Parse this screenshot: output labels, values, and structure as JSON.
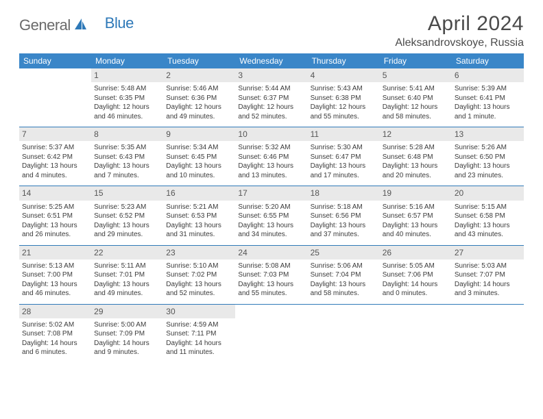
{
  "brand": {
    "part1": "General",
    "part2": "Blue"
  },
  "title": "April 2024",
  "location": "Aleksandrovskoye, Russia",
  "colors": {
    "header_bg": "#3a86c8",
    "header_text": "#ffffff",
    "daynum_bg": "#e9e9e9",
    "border": "#2e79b8",
    "brand_gray": "#6a6a6a",
    "brand_blue": "#2e79b8"
  },
  "day_names": [
    "Sunday",
    "Monday",
    "Tuesday",
    "Wednesday",
    "Thursday",
    "Friday",
    "Saturday"
  ],
  "weeks": [
    [
      {
        "n": "",
        "sr": "",
        "ss": "",
        "dl": ""
      },
      {
        "n": "1",
        "sr": "Sunrise: 5:48 AM",
        "ss": "Sunset: 6:35 PM",
        "dl": "Daylight: 12 hours and 46 minutes."
      },
      {
        "n": "2",
        "sr": "Sunrise: 5:46 AM",
        "ss": "Sunset: 6:36 PM",
        "dl": "Daylight: 12 hours and 49 minutes."
      },
      {
        "n": "3",
        "sr": "Sunrise: 5:44 AM",
        "ss": "Sunset: 6:37 PM",
        "dl": "Daylight: 12 hours and 52 minutes."
      },
      {
        "n": "4",
        "sr": "Sunrise: 5:43 AM",
        "ss": "Sunset: 6:38 PM",
        "dl": "Daylight: 12 hours and 55 minutes."
      },
      {
        "n": "5",
        "sr": "Sunrise: 5:41 AM",
        "ss": "Sunset: 6:40 PM",
        "dl": "Daylight: 12 hours and 58 minutes."
      },
      {
        "n": "6",
        "sr": "Sunrise: 5:39 AM",
        "ss": "Sunset: 6:41 PM",
        "dl": "Daylight: 13 hours and 1 minute."
      }
    ],
    [
      {
        "n": "7",
        "sr": "Sunrise: 5:37 AM",
        "ss": "Sunset: 6:42 PM",
        "dl": "Daylight: 13 hours and 4 minutes."
      },
      {
        "n": "8",
        "sr": "Sunrise: 5:35 AM",
        "ss": "Sunset: 6:43 PM",
        "dl": "Daylight: 13 hours and 7 minutes."
      },
      {
        "n": "9",
        "sr": "Sunrise: 5:34 AM",
        "ss": "Sunset: 6:45 PM",
        "dl": "Daylight: 13 hours and 10 minutes."
      },
      {
        "n": "10",
        "sr": "Sunrise: 5:32 AM",
        "ss": "Sunset: 6:46 PM",
        "dl": "Daylight: 13 hours and 13 minutes."
      },
      {
        "n": "11",
        "sr": "Sunrise: 5:30 AM",
        "ss": "Sunset: 6:47 PM",
        "dl": "Daylight: 13 hours and 17 minutes."
      },
      {
        "n": "12",
        "sr": "Sunrise: 5:28 AM",
        "ss": "Sunset: 6:48 PM",
        "dl": "Daylight: 13 hours and 20 minutes."
      },
      {
        "n": "13",
        "sr": "Sunrise: 5:26 AM",
        "ss": "Sunset: 6:50 PM",
        "dl": "Daylight: 13 hours and 23 minutes."
      }
    ],
    [
      {
        "n": "14",
        "sr": "Sunrise: 5:25 AM",
        "ss": "Sunset: 6:51 PM",
        "dl": "Daylight: 13 hours and 26 minutes."
      },
      {
        "n": "15",
        "sr": "Sunrise: 5:23 AM",
        "ss": "Sunset: 6:52 PM",
        "dl": "Daylight: 13 hours and 29 minutes."
      },
      {
        "n": "16",
        "sr": "Sunrise: 5:21 AM",
        "ss": "Sunset: 6:53 PM",
        "dl": "Daylight: 13 hours and 31 minutes."
      },
      {
        "n": "17",
        "sr": "Sunrise: 5:20 AM",
        "ss": "Sunset: 6:55 PM",
        "dl": "Daylight: 13 hours and 34 minutes."
      },
      {
        "n": "18",
        "sr": "Sunrise: 5:18 AM",
        "ss": "Sunset: 6:56 PM",
        "dl": "Daylight: 13 hours and 37 minutes."
      },
      {
        "n": "19",
        "sr": "Sunrise: 5:16 AM",
        "ss": "Sunset: 6:57 PM",
        "dl": "Daylight: 13 hours and 40 minutes."
      },
      {
        "n": "20",
        "sr": "Sunrise: 5:15 AM",
        "ss": "Sunset: 6:58 PM",
        "dl": "Daylight: 13 hours and 43 minutes."
      }
    ],
    [
      {
        "n": "21",
        "sr": "Sunrise: 5:13 AM",
        "ss": "Sunset: 7:00 PM",
        "dl": "Daylight: 13 hours and 46 minutes."
      },
      {
        "n": "22",
        "sr": "Sunrise: 5:11 AM",
        "ss": "Sunset: 7:01 PM",
        "dl": "Daylight: 13 hours and 49 minutes."
      },
      {
        "n": "23",
        "sr": "Sunrise: 5:10 AM",
        "ss": "Sunset: 7:02 PM",
        "dl": "Daylight: 13 hours and 52 minutes."
      },
      {
        "n": "24",
        "sr": "Sunrise: 5:08 AM",
        "ss": "Sunset: 7:03 PM",
        "dl": "Daylight: 13 hours and 55 minutes."
      },
      {
        "n": "25",
        "sr": "Sunrise: 5:06 AM",
        "ss": "Sunset: 7:04 PM",
        "dl": "Daylight: 13 hours and 58 minutes."
      },
      {
        "n": "26",
        "sr": "Sunrise: 5:05 AM",
        "ss": "Sunset: 7:06 PM",
        "dl": "Daylight: 14 hours and 0 minutes."
      },
      {
        "n": "27",
        "sr": "Sunrise: 5:03 AM",
        "ss": "Sunset: 7:07 PM",
        "dl": "Daylight: 14 hours and 3 minutes."
      }
    ],
    [
      {
        "n": "28",
        "sr": "Sunrise: 5:02 AM",
        "ss": "Sunset: 7:08 PM",
        "dl": "Daylight: 14 hours and 6 minutes."
      },
      {
        "n": "29",
        "sr": "Sunrise: 5:00 AM",
        "ss": "Sunset: 7:09 PM",
        "dl": "Daylight: 14 hours and 9 minutes."
      },
      {
        "n": "30",
        "sr": "Sunrise: 4:59 AM",
        "ss": "Sunset: 7:11 PM",
        "dl": "Daylight: 14 hours and 11 minutes."
      },
      {
        "n": "",
        "sr": "",
        "ss": "",
        "dl": ""
      },
      {
        "n": "",
        "sr": "",
        "ss": "",
        "dl": ""
      },
      {
        "n": "",
        "sr": "",
        "ss": "",
        "dl": ""
      },
      {
        "n": "",
        "sr": "",
        "ss": "",
        "dl": ""
      }
    ]
  ]
}
